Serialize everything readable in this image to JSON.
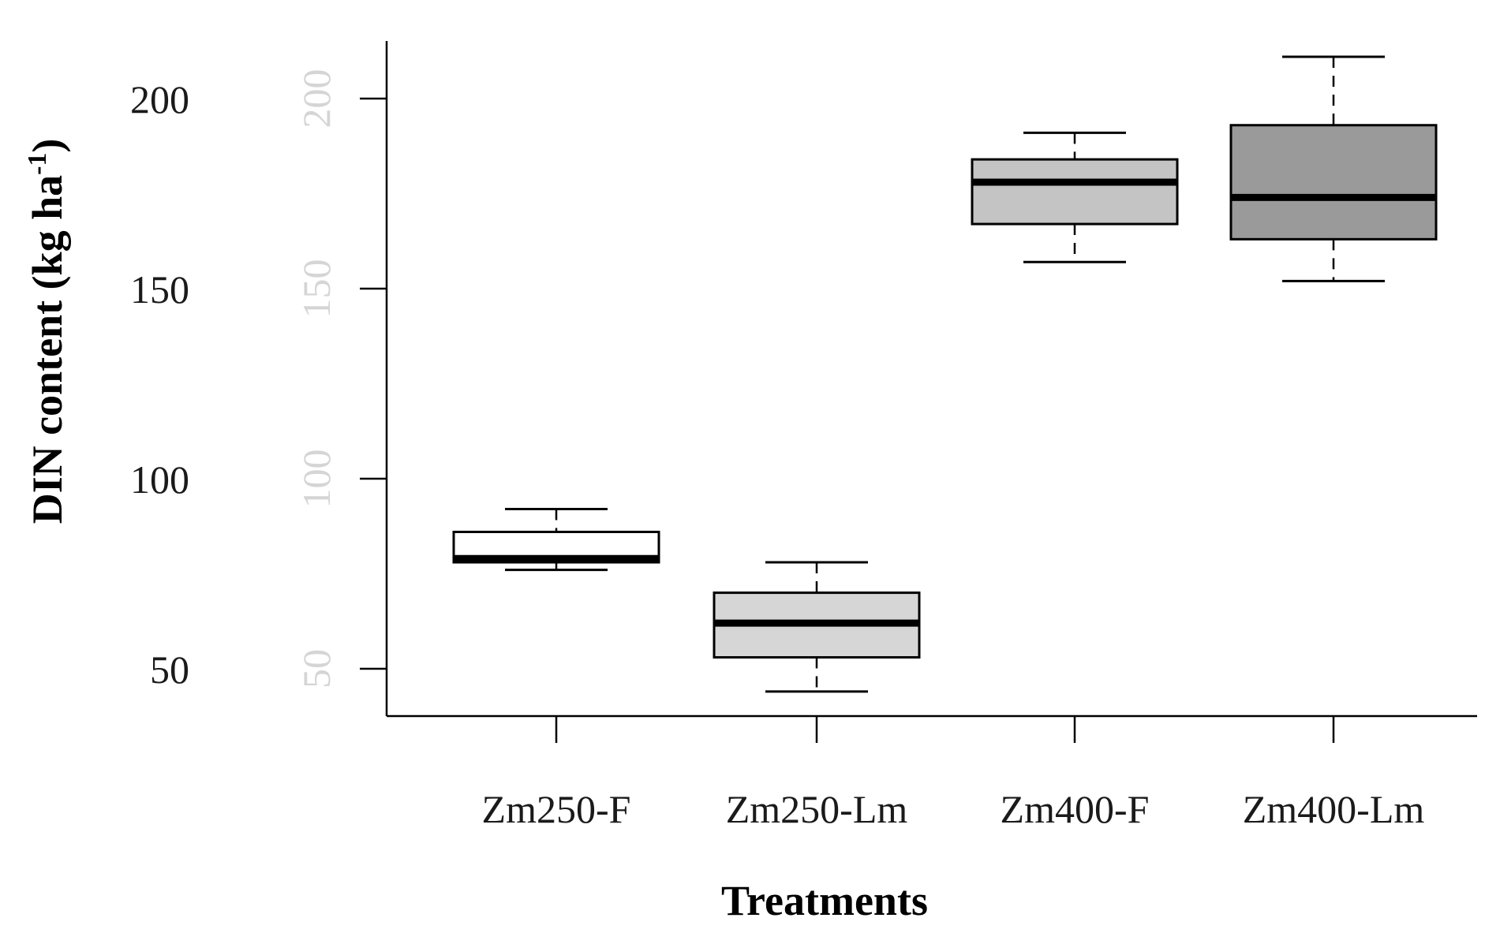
{
  "chart_data": {
    "type": "box",
    "xlabel": "Treatments",
    "ylabel": "DIN content (kg ha",
    "ylabel_superscript": "-1",
    "ylabel_suffix": ")",
    "ylim": [
      40,
      218
    ],
    "yticks": [
      50,
      100,
      150,
      200
    ],
    "ytick_labels": [
      "50",
      "100",
      "150",
      "200"
    ],
    "categories": [
      "Zm250-F",
      "Zm250-Lm",
      "Zm400-F",
      "Zm400-Lm"
    ],
    "boxes": [
      {
        "name": "Zm250-F",
        "min": 76,
        "q1": 78,
        "median": 79,
        "q3": 86,
        "max": 92,
        "fill": "#ffffff"
      },
      {
        "name": "Zm250-Lm",
        "min": 44,
        "q1": 53,
        "median": 62,
        "q3": 70,
        "max": 78,
        "fill": "#d6d6d6"
      },
      {
        "name": "Zm400-F",
        "min": 157,
        "q1": 167,
        "median": 178,
        "q3": 184,
        "max": 191,
        "fill": "#c4c4c4"
      },
      {
        "name": "Zm400-Lm",
        "min": 152,
        "q1": 163,
        "median": 174,
        "q3": 193,
        "max": 211,
        "fill": "#9a9a9a"
      }
    ],
    "grid": false,
    "legend": "none"
  }
}
